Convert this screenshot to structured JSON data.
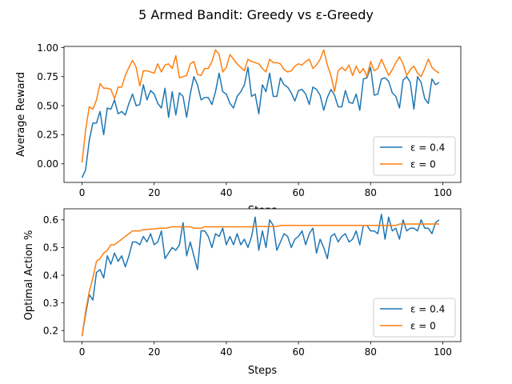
{
  "figure": {
    "title": "5 Armed Bandit: Greedy vs ε-Greedy"
  },
  "colors": {
    "eps04": "#1f77b4",
    "eps0": "#ff7f0e",
    "axis": "#000000",
    "background": "#ffffff"
  },
  "chart_data": [
    {
      "type": "line",
      "title": "",
      "xlabel": "Steps",
      "ylabel": "Average Reward",
      "xlim": [
        -5,
        105
      ],
      "ylim": [
        -0.16,
        1.01
      ],
      "xticks": [
        0,
        20,
        40,
        60,
        80,
        100
      ],
      "yticks": [
        0.0,
        0.25,
        0.5,
        0.75,
        1.0
      ],
      "ytick_labels": [
        "0.00",
        "0.25",
        "0.50",
        "0.75",
        "1.00"
      ],
      "grid": false,
      "legend_position": "lower-right",
      "x": [
        0,
        1,
        2,
        3,
        4,
        5,
        6,
        7,
        8,
        9,
        10,
        11,
        12,
        13,
        14,
        15,
        16,
        17,
        18,
        19,
        20,
        21,
        22,
        23,
        24,
        25,
        26,
        27,
        28,
        29,
        30,
        31,
        32,
        33,
        34,
        35,
        36,
        37,
        38,
        39,
        40,
        41,
        42,
        43,
        44,
        45,
        46,
        47,
        48,
        49,
        50,
        51,
        52,
        53,
        54,
        55,
        56,
        57,
        58,
        59,
        60,
        61,
        62,
        63,
        64,
        65,
        66,
        67,
        68,
        69,
        70,
        71,
        72,
        73,
        74,
        75,
        76,
        77,
        78,
        79,
        80,
        81,
        82,
        83,
        84,
        85,
        86,
        87,
        88,
        89,
        90,
        91,
        92,
        93,
        94,
        95,
        96,
        97,
        98,
        99
      ],
      "series": [
        {
          "name": "ε = 0.4",
          "color_key": "eps04",
          "values": [
            -0.12,
            -0.05,
            0.2,
            0.35,
            0.35,
            0.45,
            0.25,
            0.48,
            0.47,
            0.55,
            0.43,
            0.45,
            0.42,
            0.52,
            0.6,
            0.5,
            0.51,
            0.68,
            0.55,
            0.63,
            0.6,
            0.52,
            0.48,
            0.65,
            0.4,
            0.62,
            0.42,
            0.61,
            0.58,
            0.4,
            0.6,
            0.75,
            0.68,
            0.55,
            0.57,
            0.57,
            0.51,
            0.62,
            0.78,
            0.62,
            0.6,
            0.52,
            0.48,
            0.58,
            0.62,
            0.68,
            0.83,
            0.58,
            0.6,
            0.43,
            0.68,
            0.62,
            0.78,
            0.58,
            0.58,
            0.74,
            0.68,
            0.66,
            0.61,
            0.54,
            0.63,
            0.64,
            0.6,
            0.51,
            0.66,
            0.64,
            0.59,
            0.46,
            0.57,
            0.64,
            0.59,
            0.49,
            0.49,
            0.63,
            0.53,
            0.52,
            0.6,
            0.46,
            0.73,
            0.74,
            0.83,
            0.59,
            0.6,
            0.73,
            0.74,
            0.71,
            0.61,
            0.58,
            0.48,
            0.72,
            0.75,
            0.7,
            0.47,
            0.75,
            0.7,
            0.56,
            0.52,
            0.73,
            0.68,
            0.7
          ]
        },
        {
          "name": "ε = 0",
          "color_key": "eps0",
          "values": [
            0.01,
            0.29,
            0.49,
            0.47,
            0.55,
            0.69,
            0.65,
            0.65,
            0.64,
            0.56,
            0.66,
            0.66,
            0.76,
            0.83,
            0.89,
            0.83,
            0.67,
            0.8,
            0.8,
            0.79,
            0.78,
            0.86,
            0.79,
            0.85,
            0.86,
            0.82,
            0.93,
            0.74,
            0.75,
            0.76,
            0.86,
            0.88,
            0.77,
            0.76,
            0.82,
            0.82,
            0.88,
            0.98,
            0.94,
            0.79,
            0.83,
            0.94,
            0.9,
            0.86,
            0.83,
            0.8,
            0.9,
            0.88,
            0.87,
            0.86,
            0.82,
            0.79,
            0.9,
            0.87,
            0.87,
            0.86,
            0.81,
            0.79,
            0.8,
            0.84,
            0.86,
            0.85,
            0.88,
            0.9,
            0.82,
            0.85,
            0.9,
            0.98,
            0.85,
            0.76,
            0.62,
            0.8,
            0.83,
            0.8,
            0.85,
            0.76,
            0.84,
            0.78,
            0.82,
            0.75,
            0.88,
            0.8,
            0.82,
            0.9,
            0.83,
            0.76,
            0.81,
            0.87,
            0.92,
            0.86,
            0.76,
            0.81,
            0.84,
            0.78,
            0.75,
            0.82,
            0.9,
            0.83,
            0.8,
            0.78
          ]
        }
      ]
    },
    {
      "type": "line",
      "title": "",
      "xlabel": "Steps",
      "ylabel": "Optimal Action %",
      "xlim": [
        -5,
        105
      ],
      "ylim": [
        0.16,
        0.64
      ],
      "xticks": [
        0,
        20,
        40,
        60,
        80,
        100
      ],
      "yticks": [
        0.2,
        0.3,
        0.4,
        0.5,
        0.6
      ],
      "ytick_labels": [
        "0.2",
        "0.3",
        "0.4",
        "0.5",
        "0.6"
      ],
      "grid": false,
      "legend_position": "lower-right",
      "x": [
        0,
        1,
        2,
        3,
        4,
        5,
        6,
        7,
        8,
        9,
        10,
        11,
        12,
        13,
        14,
        15,
        16,
        17,
        18,
        19,
        20,
        21,
        22,
        23,
        24,
        25,
        26,
        27,
        28,
        29,
        30,
        31,
        32,
        33,
        34,
        35,
        36,
        37,
        38,
        39,
        40,
        41,
        42,
        43,
        44,
        45,
        46,
        47,
        48,
        49,
        50,
        51,
        52,
        53,
        54,
        55,
        56,
        57,
        58,
        59,
        60,
        61,
        62,
        63,
        64,
        65,
        66,
        67,
        68,
        69,
        70,
        71,
        72,
        73,
        74,
        75,
        76,
        77,
        78,
        79,
        80,
        81,
        82,
        83,
        84,
        85,
        86,
        87,
        88,
        89,
        90,
        91,
        92,
        93,
        94,
        95,
        96,
        97,
        98,
        99
      ],
      "series": [
        {
          "name": "ε = 0.4",
          "color_key": "eps04",
          "values": [
            0.18,
            0.26,
            0.33,
            0.31,
            0.41,
            0.42,
            0.39,
            0.47,
            0.44,
            0.48,
            0.45,
            0.47,
            0.43,
            0.47,
            0.52,
            0.52,
            0.51,
            0.54,
            0.52,
            0.55,
            0.51,
            0.52,
            0.56,
            0.46,
            0.48,
            0.5,
            0.49,
            0.51,
            0.59,
            0.47,
            0.52,
            0.47,
            0.42,
            0.56,
            0.56,
            0.54,
            0.5,
            0.55,
            0.54,
            0.57,
            0.51,
            0.54,
            0.51,
            0.55,
            0.51,
            0.53,
            0.5,
            0.54,
            0.61,
            0.49,
            0.56,
            0.5,
            0.6,
            0.58,
            0.49,
            0.52,
            0.55,
            0.54,
            0.5,
            0.53,
            0.54,
            0.56,
            0.51,
            0.55,
            0.57,
            0.48,
            0.53,
            0.5,
            0.46,
            0.54,
            0.55,
            0.52,
            0.54,
            0.55,
            0.52,
            0.53,
            0.56,
            0.51,
            0.58,
            0.58,
            0.56,
            0.56,
            0.55,
            0.62,
            0.53,
            0.61,
            0.56,
            0.57,
            0.53,
            0.6,
            0.56,
            0.57,
            0.57,
            0.56,
            0.6,
            0.57,
            0.57,
            0.55,
            0.59,
            0.6
          ]
        },
        {
          "name": "ε = 0",
          "color_key": "eps0",
          "values": [
            0.18,
            0.27,
            0.34,
            0.39,
            0.45,
            0.46,
            0.48,
            0.49,
            0.51,
            0.51,
            0.52,
            0.53,
            0.54,
            0.55,
            0.56,
            0.56,
            0.56,
            0.565,
            0.565,
            0.567,
            0.567,
            0.569,
            0.57,
            0.57,
            0.572,
            0.575,
            0.575,
            0.575,
            0.575,
            0.575,
            0.575,
            0.57,
            0.57,
            0.57,
            0.575,
            0.575,
            0.575,
            0.575,
            0.575,
            0.575,
            0.575,
            0.575,
            0.575,
            0.575,
            0.575,
            0.575,
            0.575,
            0.575,
            0.576,
            0.576,
            0.576,
            0.576,
            0.576,
            0.576,
            0.576,
            0.58,
            0.58,
            0.58,
            0.58,
            0.58,
            0.58,
            0.58,
            0.58,
            0.58,
            0.58,
            0.58,
            0.58,
            0.58,
            0.58,
            0.58,
            0.58,
            0.58,
            0.58,
            0.58,
            0.58,
            0.58,
            0.58,
            0.58,
            0.58,
            0.58,
            0.58,
            0.58,
            0.58,
            0.58,
            0.58,
            0.58,
            0.58,
            0.58,
            0.585,
            0.585,
            0.585,
            0.585,
            0.585,
            0.585,
            0.585,
            0.585,
            0.585,
            0.585,
            0.585,
            0.585
          ]
        }
      ]
    }
  ]
}
